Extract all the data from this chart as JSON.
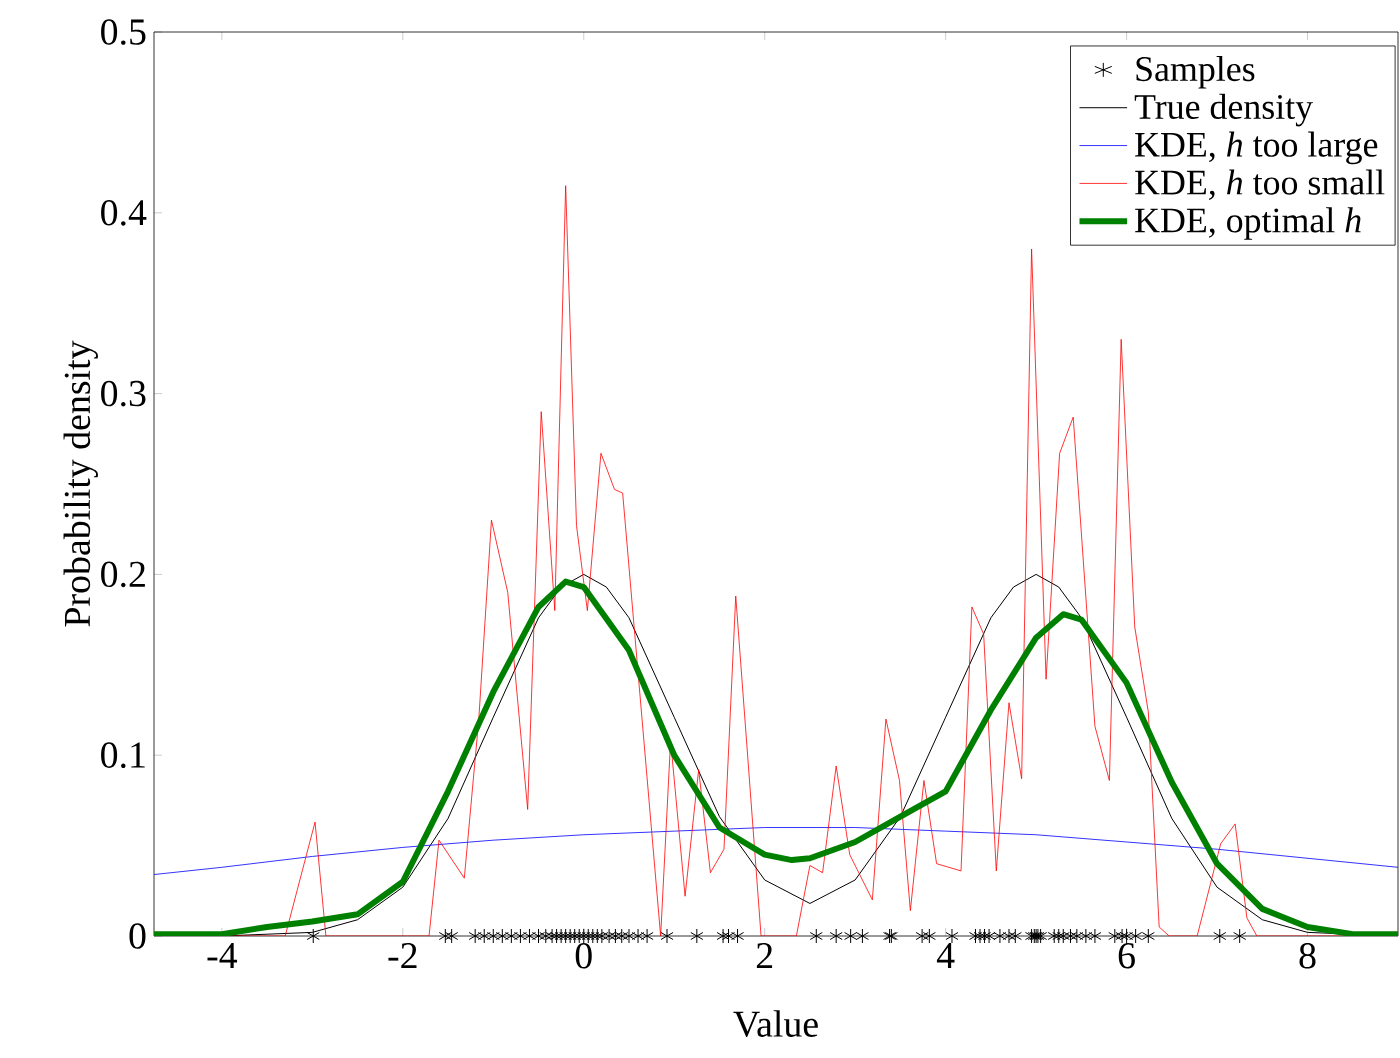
{
  "chart_data": {
    "type": "line",
    "xlabel": "Value",
    "ylabel": "Probability density",
    "xlim": [
      -4.75,
      9
    ],
    "ylim": [
      0,
      0.5
    ],
    "xticks": [
      -4,
      -2,
      0,
      2,
      4,
      6,
      8
    ],
    "yticks": [
      0,
      0.1,
      0.2,
      0.3,
      0.4,
      0.5
    ],
    "legend": "top right",
    "grid": false,
    "marker": "none",
    "line_style": "solid",
    "series": [
      {
        "name": "Samples",
        "type": "scatter",
        "marker": "cross",
        "color": "#000000",
        "x": [
          -2.99,
          -1.53,
          -1.46,
          -1.2,
          -1.1,
          -1.0,
          -0.9,
          -0.8,
          -0.7,
          -0.6,
          -0.5,
          -0.42,
          -0.35,
          -0.3,
          -0.25,
          -0.2,
          -0.15,
          -0.1,
          -0.05,
          0.0,
          0.05,
          0.1,
          0.15,
          0.2,
          0.28,
          0.35,
          0.42,
          0.5,
          0.6,
          0.7,
          0.92,
          1.25,
          1.54,
          1.6,
          1.7,
          2.57,
          2.79,
          2.95,
          3.08,
          3.38,
          3.4,
          3.74,
          3.82,
          4.07,
          4.33,
          4.38,
          4.43,
          4.48,
          4.6,
          4.7,
          4.77,
          4.95,
          4.98,
          5.0,
          5.02,
          5.05,
          5.2,
          5.25,
          5.3,
          5.38,
          5.45,
          5.55,
          5.65,
          5.87,
          5.95,
          6.0,
          6.1,
          6.24,
          7.03,
          7.25
        ],
        "values": [
          0,
          0,
          0,
          0,
          0,
          0,
          0,
          0,
          0,
          0,
          0,
          0,
          0,
          0,
          0,
          0,
          0,
          0,
          0,
          0,
          0,
          0,
          0,
          0,
          0,
          0,
          0,
          0,
          0,
          0,
          0,
          0,
          0,
          0,
          0,
          0,
          0,
          0,
          0,
          0,
          0,
          0,
          0,
          0,
          0,
          0,
          0,
          0,
          0,
          0,
          0,
          0,
          0,
          0,
          0,
          0,
          0,
          0,
          0,
          0,
          0,
          0,
          0,
          0,
          0,
          0,
          0,
          0,
          0,
          0
        ]
      },
      {
        "name": "True density",
        "color": "#000000",
        "x": [
          -4.75,
          -4,
          -3.5,
          -3,
          -2.5,
          -2,
          -1.5,
          -1,
          -0.5,
          -0.25,
          0,
          0.25,
          0.5,
          1,
          1.5,
          2,
          2.5,
          3,
          3.5,
          4,
          4.5,
          4.75,
          5,
          5.25,
          5.5,
          6,
          6.5,
          7,
          7.5,
          8,
          8.5,
          9
        ],
        "values": [
          0,
          0,
          0.001,
          0.002,
          0.009,
          0.027,
          0.065,
          0.121,
          0.176,
          0.193,
          0.2,
          0.193,
          0.176,
          0.121,
          0.066,
          0.031,
          0.018,
          0.031,
          0.066,
          0.121,
          0.176,
          0.193,
          0.2,
          0.193,
          0.176,
          0.121,
          0.065,
          0.027,
          0.009,
          0.002,
          0.001,
          0
        ]
      },
      {
        "name": "KDE, *h* too large",
        "color": "#0000ff",
        "x": [
          -4.75,
          -4,
          -3,
          -2,
          -1,
          0,
          1,
          2,
          3,
          4,
          5,
          6,
          7,
          8,
          9
        ],
        "values": [
          0.034,
          0.038,
          0.044,
          0.049,
          0.053,
          0.056,
          0.058,
          0.06,
          0.06,
          0.058,
          0.056,
          0.052,
          0.048,
          0.043,
          0.038
        ]
      },
      {
        "name": "KDE, *h* too small",
        "color": "#ff0000",
        "x": [
          -4.75,
          -3.3,
          -2.97,
          -2.85,
          -1.71,
          -1.6,
          -1.32,
          -1.16,
          -1.02,
          -0.84,
          -0.62,
          -0.47,
          -0.32,
          -0.2,
          -0.08,
          0.04,
          0.19,
          0.34,
          0.43,
          0.85,
          0.96,
          1.12,
          1.27,
          1.4,
          1.55,
          1.68,
          1.96,
          2.35,
          2.5,
          2.64,
          2.79,
          2.94,
          3.19,
          3.34,
          3.49,
          3.61,
          3.76,
          3.9,
          4.17,
          4.29,
          4.42,
          4.56,
          4.7,
          4.84,
          4.95,
          5.11,
          5.26,
          5.41,
          5.65,
          5.81,
          5.94,
          6.09,
          6.24,
          6.36,
          6.47,
          6.78,
          7.04,
          7.2,
          7.33,
          7.44,
          9
        ],
        "values": [
          0,
          0,
          0.063,
          0,
          0,
          0.053,
          0.032,
          0.12,
          0.23,
          0.19,
          0.07,
          0.29,
          0.18,
          0.415,
          0.227,
          0.18,
          0.267,
          0.247,
          0.245,
          0,
          0.108,
          0.022,
          0.092,
          0.035,
          0.048,
          0.188,
          0,
          0,
          0.039,
          0.035,
          0.094,
          0.045,
          0.02,
          0.12,
          0.086,
          0.014,
          0.086,
          0.04,
          0.036,
          0.182,
          0.167,
          0.036,
          0.129,
          0.087,
          0.38,
          0.142,
          0.267,
          0.287,
          0.116,
          0.086,
          0.33,
          0.171,
          0.124,
          0.005,
          0,
          0,
          0.051,
          0.062,
          0.01,
          0,
          0
        ]
      },
      {
        "name": "KDE, optimal *h*",
        "color": "#008000",
        "x": [
          -4.75,
          -4,
          -3.5,
          -3,
          -2.5,
          -2,
          -1.5,
          -1,
          -0.5,
          -0.2,
          0,
          0.5,
          1,
          1.5,
          2,
          2.3,
          2.5,
          3,
          3.5,
          4,
          4.5,
          5,
          5.3,
          5.5,
          6,
          6.5,
          7,
          7.5,
          8,
          8.5,
          9
        ],
        "values": [
          0.001,
          0.001,
          0.005,
          0.008,
          0.012,
          0.03,
          0.08,
          0.135,
          0.182,
          0.196,
          0.193,
          0.158,
          0.1,
          0.06,
          0.045,
          0.042,
          0.043,
          0.052,
          0.066,
          0.08,
          0.125,
          0.165,
          0.178,
          0.175,
          0.14,
          0.085,
          0.04,
          0.015,
          0.005,
          0.001,
          0.001
        ]
      }
    ]
  }
}
